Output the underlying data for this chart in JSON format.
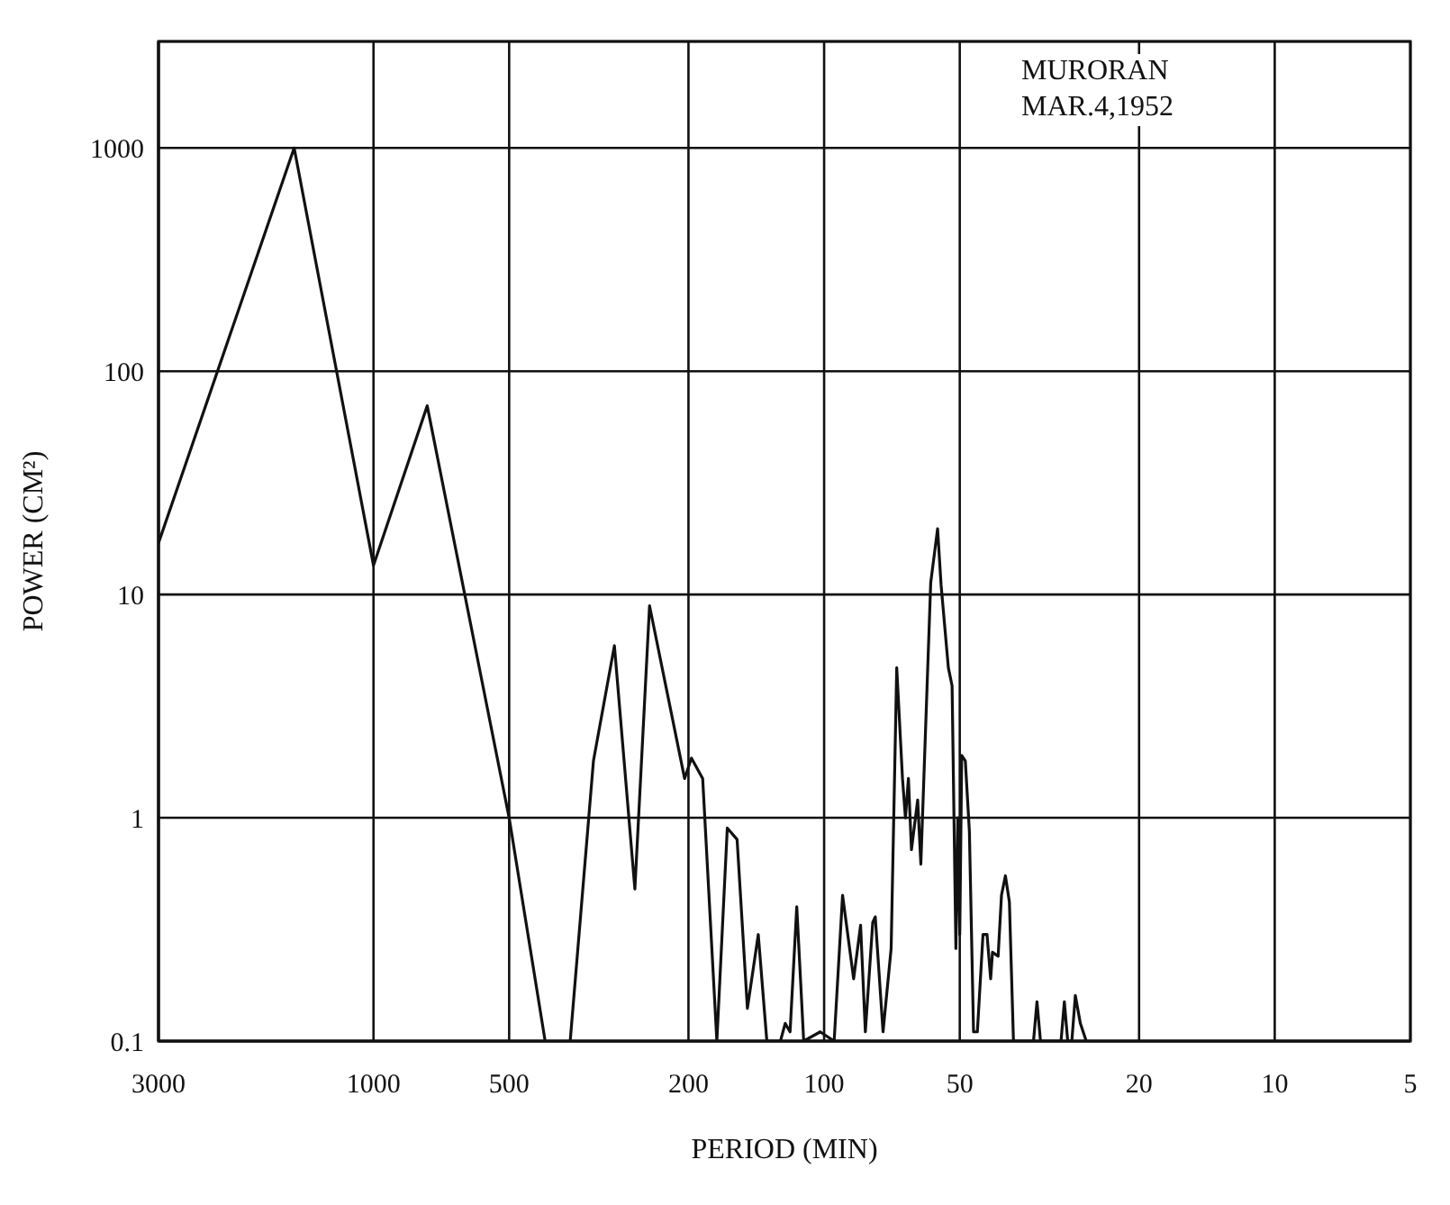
{
  "chart_data": {
    "type": "line",
    "xlabel": "PERIOD (MIN)",
    "ylabel": "POWER (CM²)",
    "log": "xy",
    "grid": true,
    "marker": "none",
    "line_style": "solid",
    "annotations": [
      "MURORAN",
      "MAR.4,1952"
    ],
    "xlim": [
      3000,
      5
    ],
    "xticks": [
      3000,
      1000,
      500,
      200,
      100,
      50,
      20,
      10,
      5
    ],
    "ylim": [
      0.1,
      3000
    ],
    "yticks": [
      0.1,
      1,
      10,
      100,
      1000
    ],
    "x": [
      3000,
      1500,
      1000,
      760,
      500,
      416,
      390,
      366,
      325,
      292,
      263,
      244,
      204,
      197,
      186,
      173,
      164,
      156,
      148,
      140,
      134,
      125,
      122,
      119,
      115,
      111,
      102,
      95,
      91,
      86,
      83,
      81,
      78,
      77,
      74,
      71,
      69,
      67,
      66,
      65,
      64,
      62,
      61,
      58,
      56,
      55,
      53,
      52,
      51,
      50.5,
      50,
      49.5,
      48.6,
      47.6,
      46.6,
      45.7,
      44.4,
      43.5,
      42.7,
      42.3,
      41.1,
      40.4,
      39.6,
      38.8,
      38,
      34.3,
      33.7,
      33.1,
      29.8,
      29.3,
      28.8,
      28.2,
      27.7,
      27,
      26.2
    ],
    "series": [
      {
        "color": "#111111",
        "values": [
          17,
          1000,
          13.5,
          70,
          1,
          0.1,
          null,
          0.1,
          1.8,
          5.9,
          0.48,
          8.9,
          1.5,
          1.85,
          1.5,
          0.1,
          0.9,
          0.8,
          0.14,
          0.3,
          0.1,
          0.1,
          0.12,
          0.11,
          0.4,
          0.1,
          0.11,
          0.1,
          0.45,
          0.19,
          0.33,
          0.11,
          0.34,
          0.36,
          0.11,
          0.26,
          4.7,
          1.5,
          1,
          1.5,
          0.72,
          1.2,
          0.62,
          11.3,
          19.7,
          11,
          4.7,
          3.9,
          0.26,
          1,
          0.3,
          1.9,
          1.8,
          0.87,
          0.11,
          0.11,
          0.3,
          0.3,
          0.19,
          0.25,
          0.24,
          0.45,
          0.55,
          0.42,
          0.1,
          0.1,
          0.15,
          0.1,
          0.1,
          0.15,
          0.1,
          0.1,
          0.16,
          0.12,
          0.1
        ]
      }
    ]
  }
}
